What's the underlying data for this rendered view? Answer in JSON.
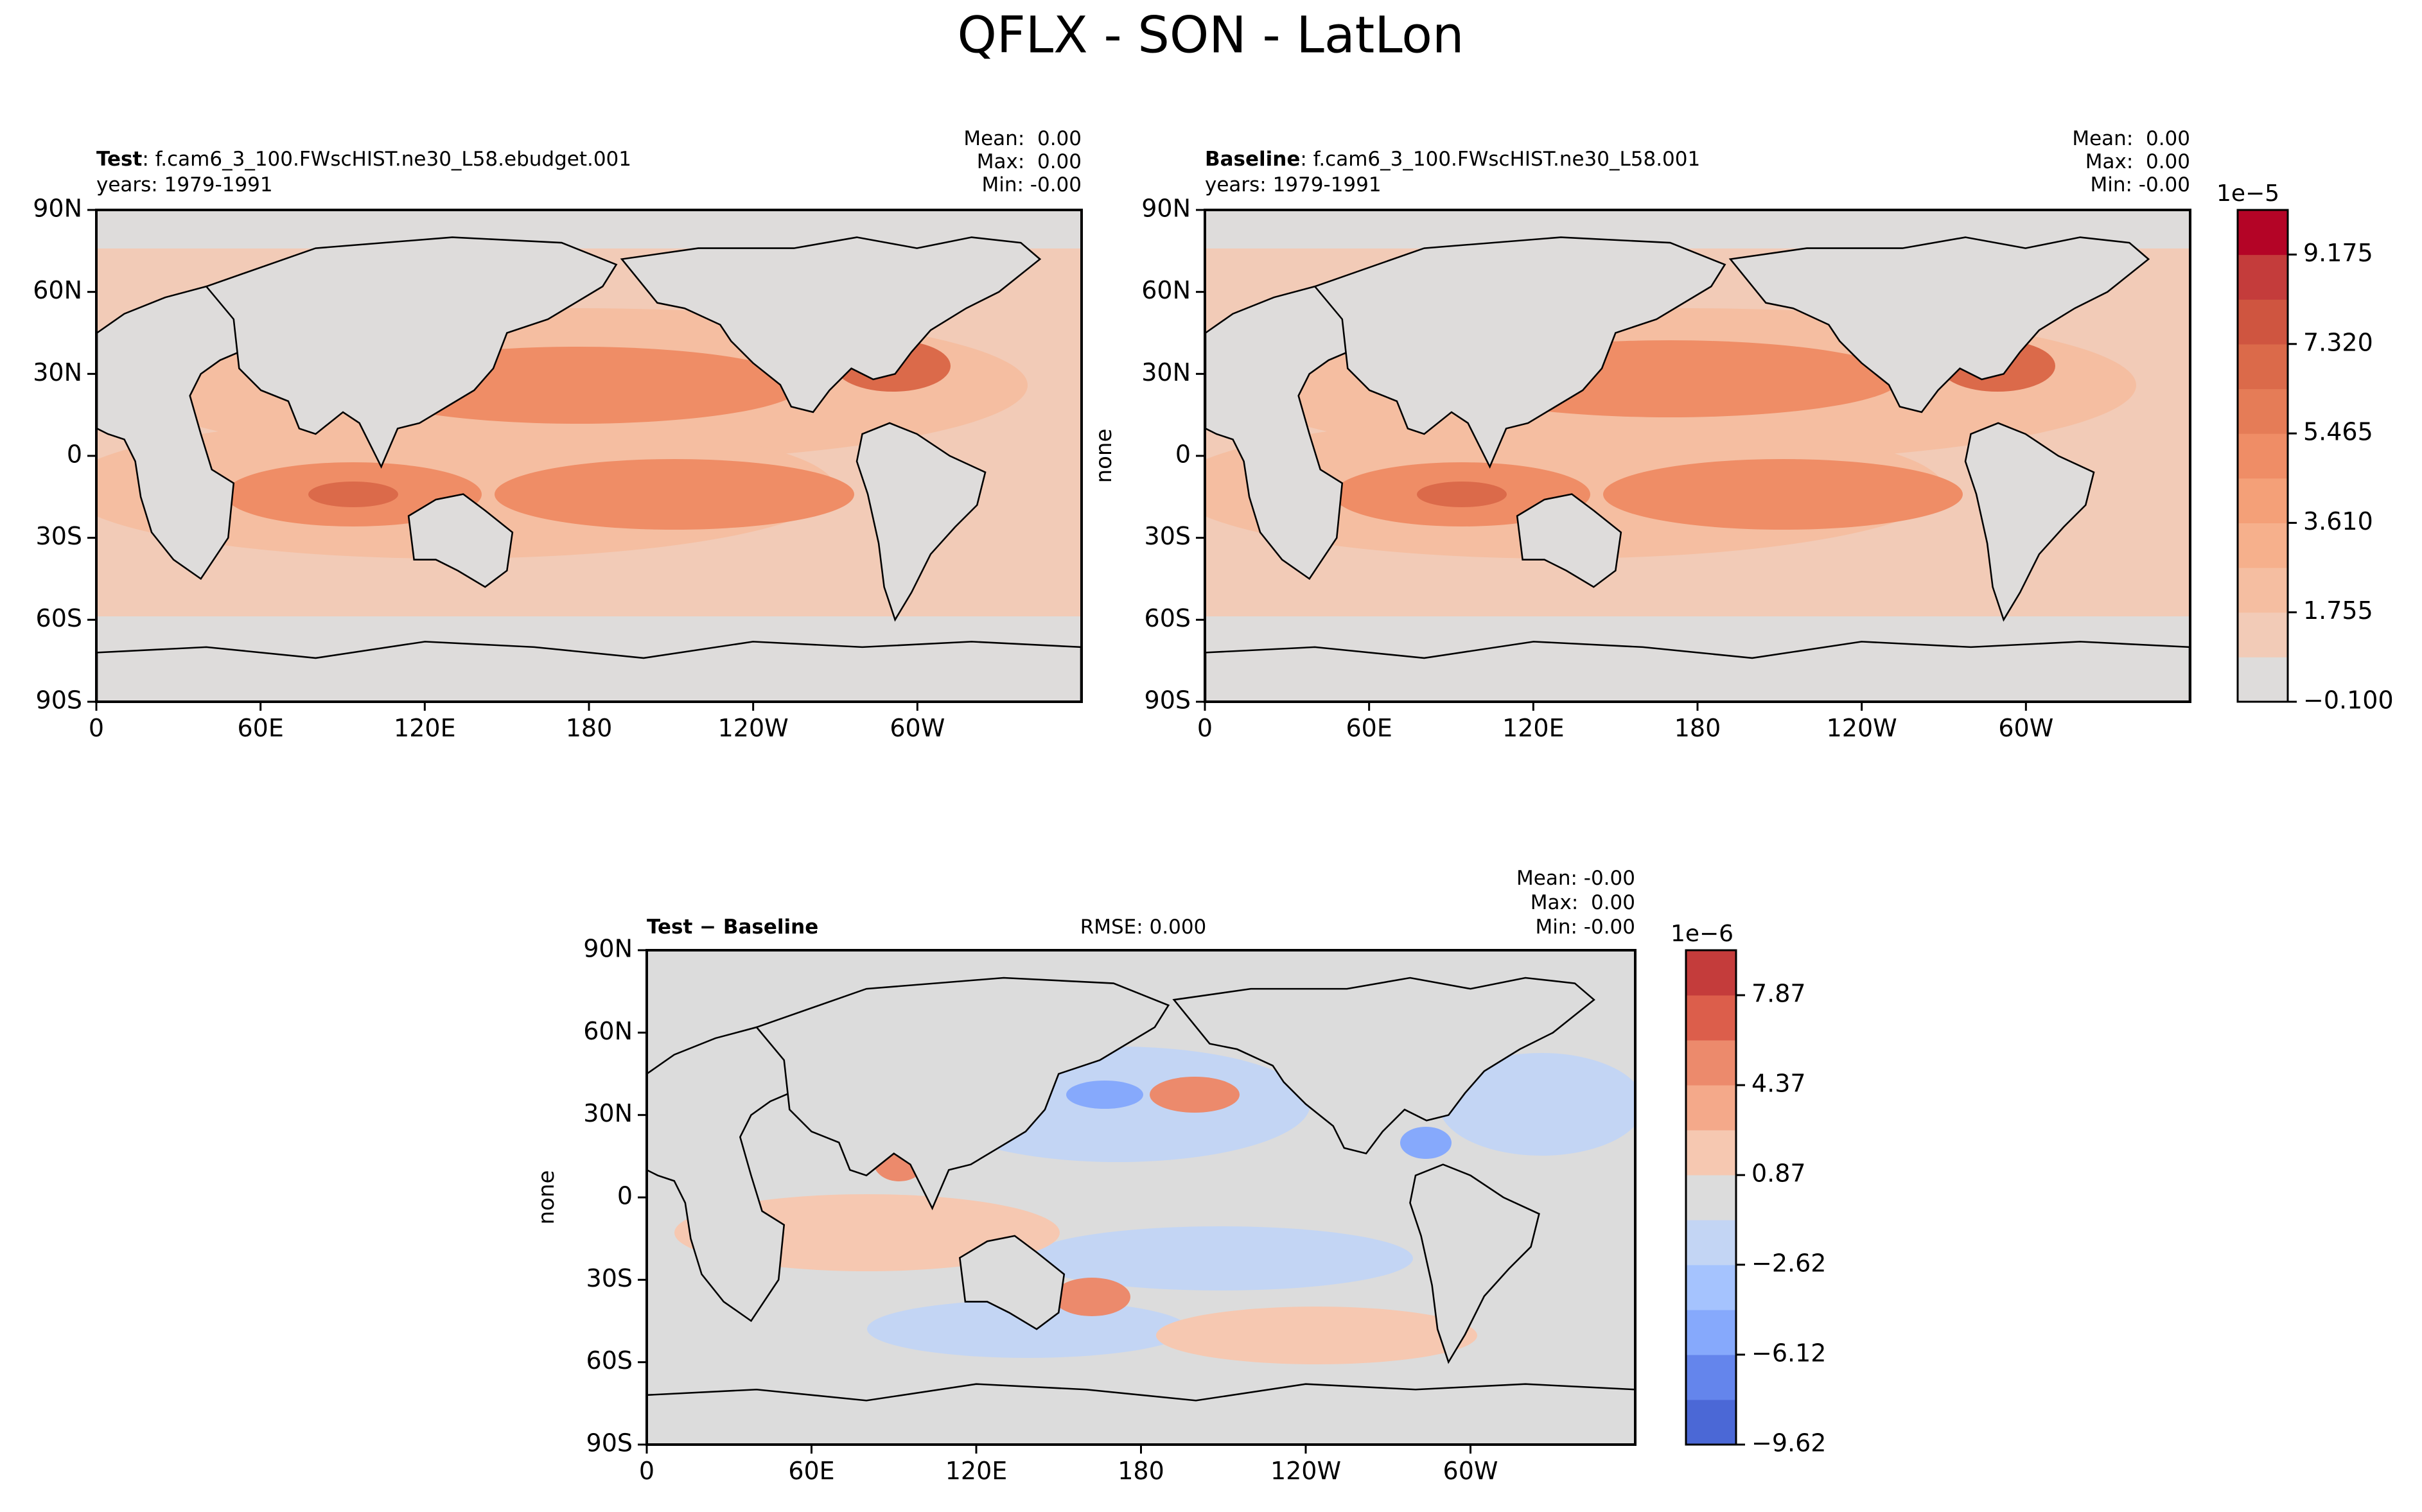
{
  "figure": {
    "title": "QFLX - SON - LatLon"
  },
  "lat_tick_labels": [
    "90N",
    "60N",
    "30N",
    "0",
    "30S",
    "60S",
    "90S"
  ],
  "lon_tick_labels": [
    "0",
    "60E",
    "120E",
    "180",
    "120W",
    "60W"
  ],
  "chart_data": [
    {
      "type": "heatmap",
      "panel": "test",
      "label_bold": "Test",
      "label_rest": ": f.cam6_3_100.FWscHIST.ne30_L58.ebudget.001",
      "years": "years: 1979-1991",
      "stats": [
        "Mean:  0.00",
        "Max:  0.00",
        "Min: -0.00"
      ],
      "ylabel": "",
      "x_range": [
        0,
        360
      ],
      "y_range": [
        -90,
        90
      ]
    },
    {
      "type": "heatmap",
      "panel": "baseline",
      "label_bold": "Baseline",
      "label_rest": ": f.cam6_3_100.FWscHIST.ne30_L58.001",
      "years": "years: 1979-1991",
      "stats": [
        "Mean:  0.00",
        "Max:  0.00",
        "Min: -0.00"
      ],
      "ylabel": "none",
      "x_range": [
        0,
        360
      ],
      "y_range": [
        -90,
        90
      ]
    },
    {
      "type": "heatmap",
      "panel": "diff",
      "label_bold": "Test − Baseline",
      "rmse": "RMSE: 0.000",
      "stats": [
        "Mean: -0.00",
        "Max:  0.00",
        "Min: -0.00"
      ],
      "ylabel": "none",
      "x_range": [
        0,
        360
      ],
      "y_range": [
        -90,
        90
      ]
    }
  ],
  "colorbar_main": {
    "exponent": "1e−5",
    "tick_labels": [
      "9.175",
      "7.320",
      "5.465",
      "3.610",
      "1.755",
      "−0.100"
    ],
    "tick_values": [
      9.175,
      7.32,
      5.465,
      3.61,
      1.755,
      -0.1
    ],
    "range": [
      -0.1,
      10.1
    ],
    "levels": 11,
    "colors": [
      "#dedcdb",
      "#f2cbb7",
      "#f5bea1",
      "#f6b08c",
      "#f4a078",
      "#ef8d66",
      "#e57c57",
      "#db6a4a",
      "#cf5540",
      "#c43c3b",
      "#b40426"
    ]
  },
  "colorbar_diff": {
    "exponent": "1e−6",
    "tick_labels": [
      "7.87",
      "4.37",
      "0.87",
      "−2.62",
      "−6.12",
      "−9.62"
    ],
    "tick_values": [
      7.87,
      4.37,
      0.87,
      -2.62,
      -6.12,
      -9.62
    ],
    "range": [
      -9.62,
      9.62
    ],
    "levels": 11,
    "colors": [
      "#4b68d6",
      "#6485ec",
      "#86a9fc",
      "#a5c3fe",
      "#c3d5f4",
      "#dcdcdc",
      "#f6c8b1",
      "#f4a98a",
      "#ec8a6c",
      "#dc5e4b",
      "#c43c3b"
    ]
  },
  "map_colors": {
    "land": "#dedcdb",
    "ocean_low": "#f2cbb7",
    "ocean_mid": "#f5bea1",
    "ocean_high": "#ef8d66",
    "ocean_peak": "#db6a4a",
    "diff_base": "#dcdcdc",
    "diff_pos": "#f6c8b1",
    "diff_pos2": "#ec8a6c",
    "diff_neg": "#c3d5f4",
    "diff_neg2": "#86a9fc",
    "coast": "#000000"
  }
}
